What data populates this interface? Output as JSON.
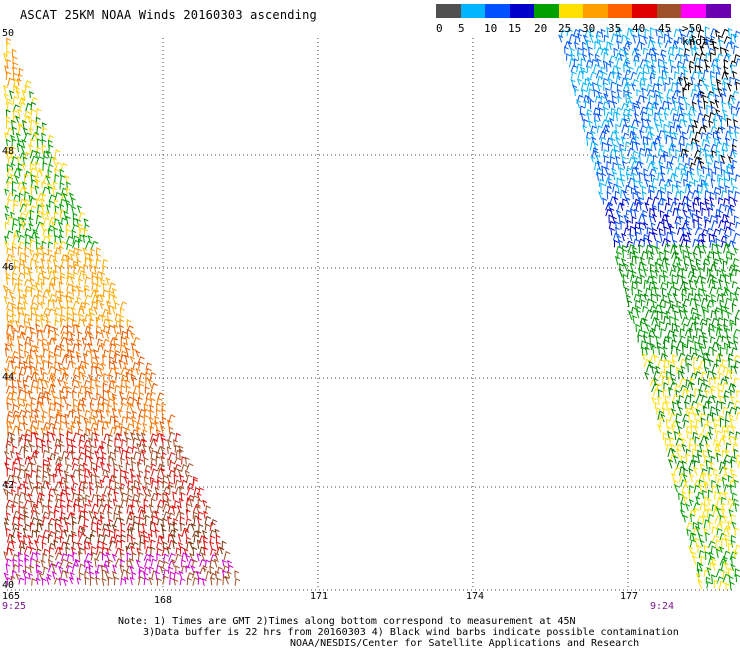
{
  "title": "ASCAT 25KM NOAA Winds 20160303 ascending",
  "legend": {
    "labels": [
      "0",
      "5",
      "10",
      "15",
      "20",
      "25",
      "30",
      "35",
      "40",
      "45",
      ">50 knots"
    ],
    "colors": [
      "#505050",
      "#00b4ff",
      "#0050ff",
      "#0000c8",
      "#00a000",
      "#ffe000",
      "#ffa000",
      "#ff6000",
      "#e00000",
      "#a05028",
      "#ff00ff",
      "#6a00b0"
    ]
  },
  "axes": {
    "lat_ticks": [
      "50",
      "48",
      "46",
      "44",
      "42",
      "40"
    ],
    "lon_ticks": [
      "165",
      "168",
      "171",
      "174",
      "177"
    ]
  },
  "times": {
    "left": "9:25",
    "right": "9:24"
  },
  "notes": {
    "line1": "Note: 1) Times are GMT 2)Times along bottom correspond to measurement at 45N",
    "line2": "3)Data buffer is 22 hrs from 20160303 4) Black wind barbs indicate possible contamination",
    "line3": "NOAA/NESDIS/Center for Satellite Applications and Research"
  }
}
